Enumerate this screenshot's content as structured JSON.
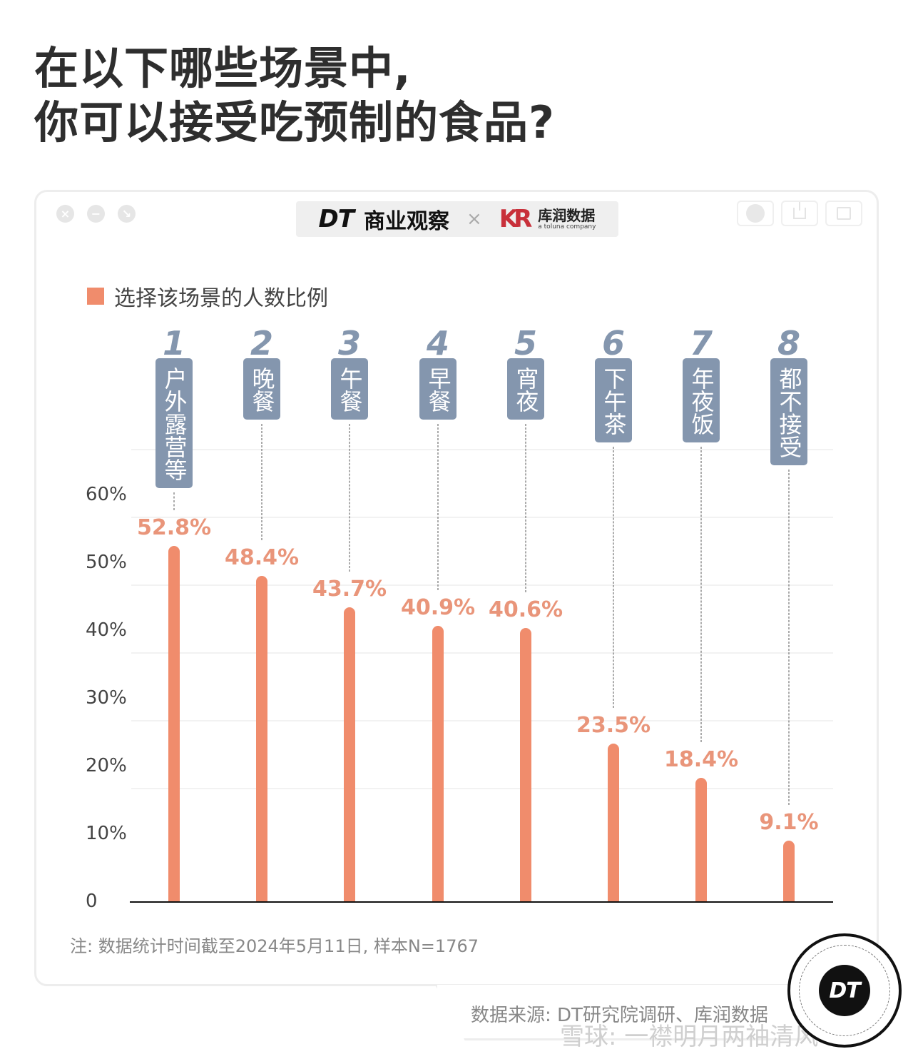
{
  "title": {
    "line1": "在以下哪些场景中,",
    "line2": "你可以接受吃预制的食品?"
  },
  "window": {
    "controls": [
      "close-icon",
      "minimize-icon",
      "expand-icon"
    ],
    "actions": [
      "record-icon",
      "share-icon",
      "window-icon"
    ],
    "brand": {
      "dt_logo": "DT",
      "dt_name": "商业观察",
      "separator": "×",
      "partner_logo": "KR",
      "partner_name": "库润数据",
      "partner_sub": "a toluna company"
    }
  },
  "legend": {
    "label": "选择该场景的人数比例",
    "color": "#F08C6C"
  },
  "axis": {
    "ticks": [
      "60%",
      "50%",
      "40%",
      "30%",
      "20%",
      "10%",
      "0"
    ]
  },
  "categories": [
    {
      "rank": "1",
      "name": "户外露营等",
      "value": "52.8%"
    },
    {
      "rank": "2",
      "name": "晚餐",
      "value": "48.4%"
    },
    {
      "rank": "3",
      "name": "午餐",
      "value": "43.7%"
    },
    {
      "rank": "4",
      "name": "早餐",
      "value": "40.9%"
    },
    {
      "rank": "5",
      "name": "宵夜",
      "value": "40.6%"
    },
    {
      "rank": "6",
      "name": "下午茶",
      "value": "23.5%"
    },
    {
      "rank": "7",
      "name": "年夜饭",
      "value": "18.4%"
    },
    {
      "rank": "8",
      "name": "都不接受",
      "value": "9.1%"
    }
  ],
  "note": "注: 数据统计时间截至2024年5月11日, 样本N=1767",
  "source": "数据来源: DT研究院调研、库润数据",
  "badge": "DT",
  "watermark": "雪球: 一襟明月两袖清风",
  "chart_data": {
    "type": "bar",
    "title": "在以下哪些场景中,你可以接受吃预制的食品?",
    "categories": [
      "户外露营等",
      "晚餐",
      "午餐",
      "早餐",
      "宵夜",
      "下午茶",
      "年夜饭",
      "都不接受"
    ],
    "series": [
      {
        "name": "选择该场景的人数比例",
        "values": [
          52.8,
          48.4,
          43.7,
          40.9,
          40.6,
          23.5,
          18.4,
          9.1
        ]
      }
    ],
    "xlabel": "",
    "ylabel": "",
    "yticks": [
      "0",
      "10%",
      "20%",
      "30%",
      "40%",
      "50%",
      "60%"
    ],
    "ylim": [
      0,
      60
    ],
    "grid": true,
    "legend_position": "top-left",
    "annotations": [
      "注: 数据统计时间截至2024年5月11日, 样本N=1767",
      "数据来源: DT研究院调研、库润数据"
    ],
    "colors": {
      "bar": "#F08C6C",
      "label": "#E9957A",
      "tag": "#8496AE"
    }
  }
}
